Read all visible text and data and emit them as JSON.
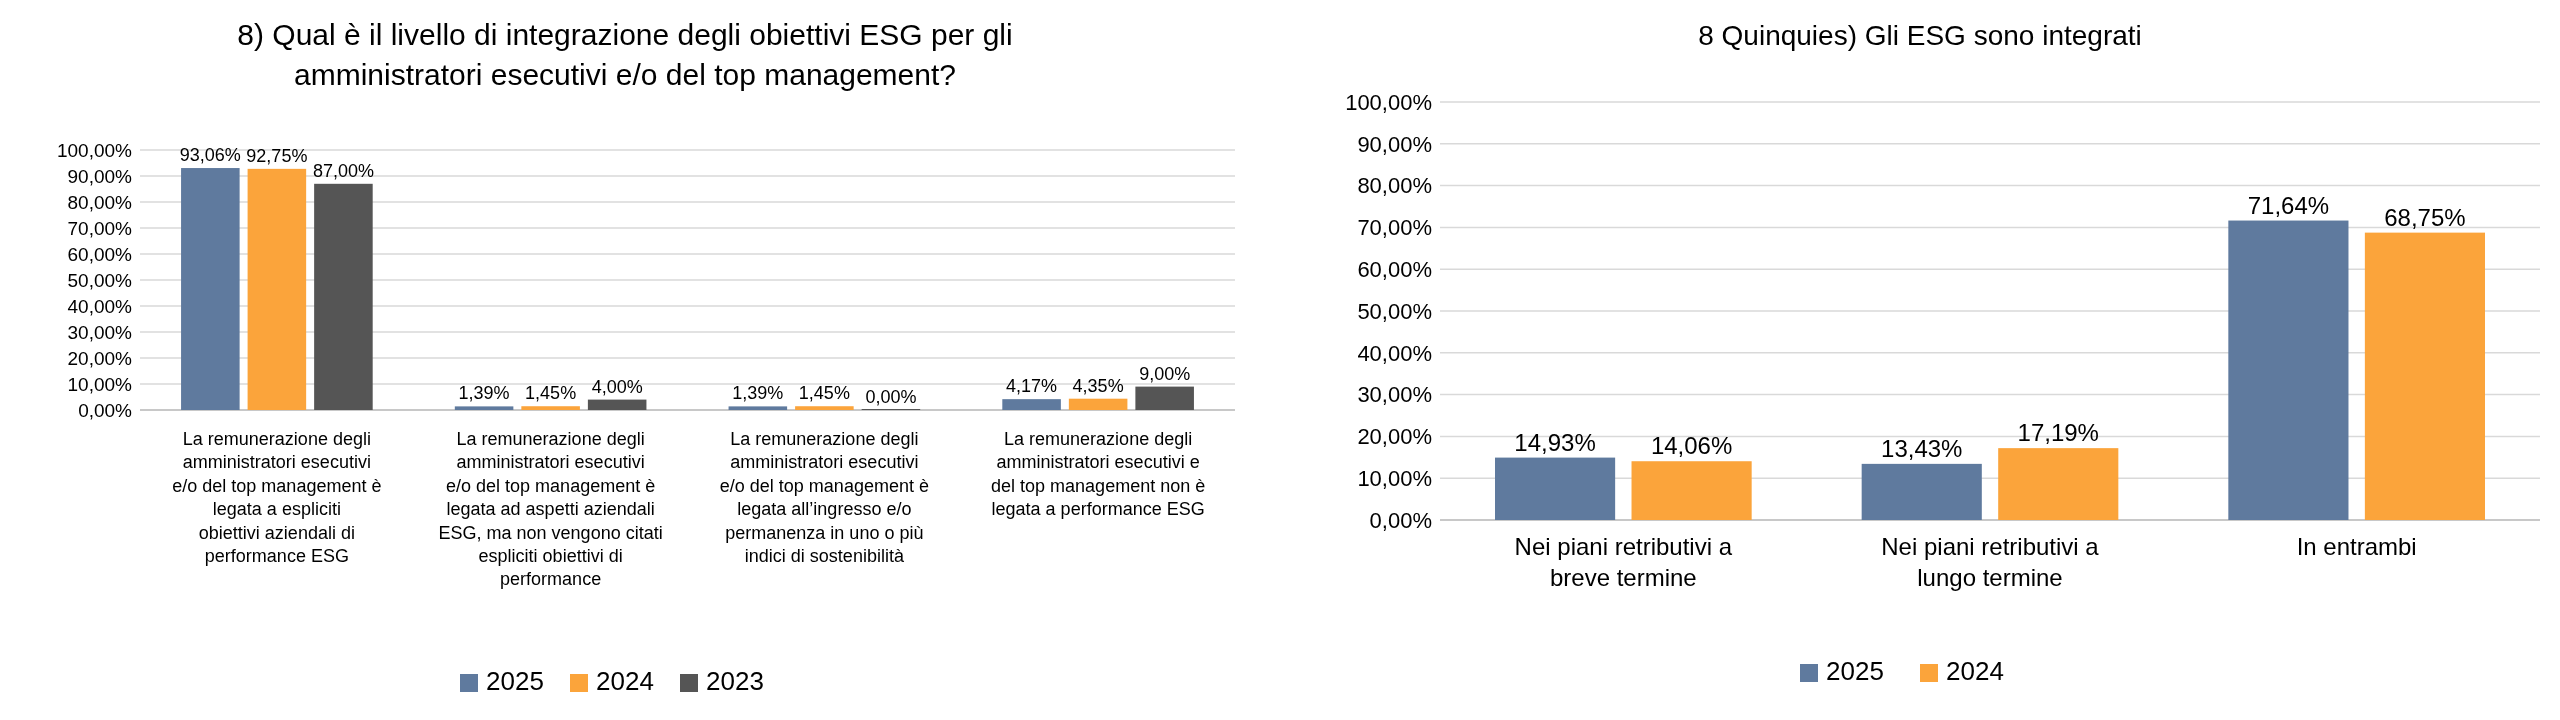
{
  "chart_data": [
    {
      "type": "bar",
      "title": "8) Qual è il livello di integrazione degli obiettivi ESG per gli amministratori esecutivi e/o del top management?",
      "categories": [
        "La remunerazione degli amministratori esecutivi e/o del top management è legata a espliciti obiettivi aziendali di performance ESG",
        "La remunerazione degli amministratori esecutivi e/o del top management è legata ad aspetti aziendali ESG, ma non vengono citati espliciti obiettivi di performance",
        "La remunerazione degli amministratori esecutivi e/o del top management è legata all’ingresso e/o permanenza in uno o più indici di sostenibilità",
        "La remunerazione degli amministratori esecutivi e del top management non è legata a performance ESG"
      ],
      "series": [
        {
          "name": "2025",
          "color": "#5f7a9e",
          "values": [
            93.06,
            1.39,
            1.39,
            4.17
          ],
          "value_labels": [
            "93,06%",
            "1,39%",
            "1,39%",
            "4,17%"
          ]
        },
        {
          "name": "2024",
          "color": "#fba43b",
          "values": [
            92.75,
            1.45,
            1.45,
            4.35
          ],
          "value_labels": [
            "92,75%",
            "1,45%",
            "1,45%",
            "4,35%"
          ]
        },
        {
          "name": "2023",
          "color": "#555555",
          "values": [
            87,
            4,
            0,
            9
          ],
          "value_labels": [
            "87,00%",
            "4,00%",
            "0,00%",
            "9,00%"
          ]
        }
      ],
      "ylim": [
        0,
        100
      ],
      "yticks": [
        {
          "value": 0,
          "label": "0,00%"
        },
        {
          "value": 10,
          "label": "10,00%"
        },
        {
          "value": 20,
          "label": "20,00%"
        },
        {
          "value": 30,
          "label": "30,00%"
        },
        {
          "value": 40,
          "label": "40,00%"
        },
        {
          "value": 50,
          "label": "50,00%"
        },
        {
          "value": 60,
          "label": "60,00%"
        },
        {
          "value": 70,
          "label": "70,00%"
        },
        {
          "value": 80,
          "label": "80,00%"
        },
        {
          "value": 90,
          "label": "90,00%"
        },
        {
          "value": 100,
          "label": "100,00%"
        }
      ],
      "grid": "y",
      "legend": "bottom"
    },
    {
      "type": "bar",
      "title": "8 Quinquies) Gli ESG sono integrati",
      "categories": [
        "Nei piani retributivi a breve termine",
        "Nei piani retributivi a lungo termine",
        "In entrambi"
      ],
      "series": [
        {
          "name": "2025",
          "color": "#5f7a9e",
          "values": [
            14.93,
            13.43,
            71.64
          ],
          "value_labels": [
            "14,93%",
            "13,43%",
            "71,64%"
          ]
        },
        {
          "name": "2024",
          "color": "#fba43b",
          "values": [
            14.06,
            17.19,
            68.75
          ],
          "value_labels": [
            "14,06%",
            "17,19%",
            "68,75%"
          ]
        }
      ],
      "ylim": [
        0,
        100
      ],
      "yticks": [
        {
          "value": 0,
          "label": "0,00%"
        },
        {
          "value": 10,
          "label": "10,00%"
        },
        {
          "value": 20,
          "label": "20,00%"
        },
        {
          "value": 30,
          "label": "30,00%"
        },
        {
          "value": 40,
          "label": "40,00%"
        },
        {
          "value": 50,
          "label": "50,00%"
        },
        {
          "value": 60,
          "label": "60,00%"
        },
        {
          "value": 70,
          "label": "70,00%"
        },
        {
          "value": 80,
          "label": "80,00%"
        },
        {
          "value": 90,
          "label": "90,00%"
        },
        {
          "value": 100,
          "label": "100,00%"
        }
      ],
      "grid": "y",
      "legend": "bottom"
    }
  ]
}
